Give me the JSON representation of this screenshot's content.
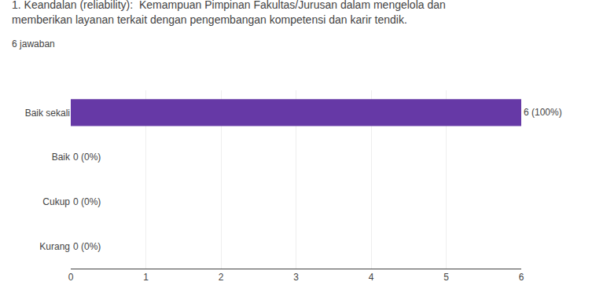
{
  "chart_data": {
    "type": "bar",
    "orientation": "horizontal",
    "title": [
      "1. Keandalan (reliability):  Kemampuan Pimpinan Fakultas/Jurusan dalam mengelola dan",
      "memberikan layanan terkait dengan pengembangan kompetensi dan karir tendik."
    ],
    "subtitle": "6 jawaban",
    "categories": [
      "Baik sekali",
      "Baik",
      "Cukup",
      "Kurang"
    ],
    "values": [
      6,
      0,
      0,
      0
    ],
    "value_labels": [
      "6 (100%)",
      "0 (0%)",
      "0 (0%)",
      "0 (0%)"
    ],
    "data_labels": true,
    "color": "#6639a6",
    "xlim": [
      0,
      6
    ],
    "xticks": [
      0,
      1,
      2,
      3,
      4,
      5,
      6
    ],
    "grid": true
  }
}
